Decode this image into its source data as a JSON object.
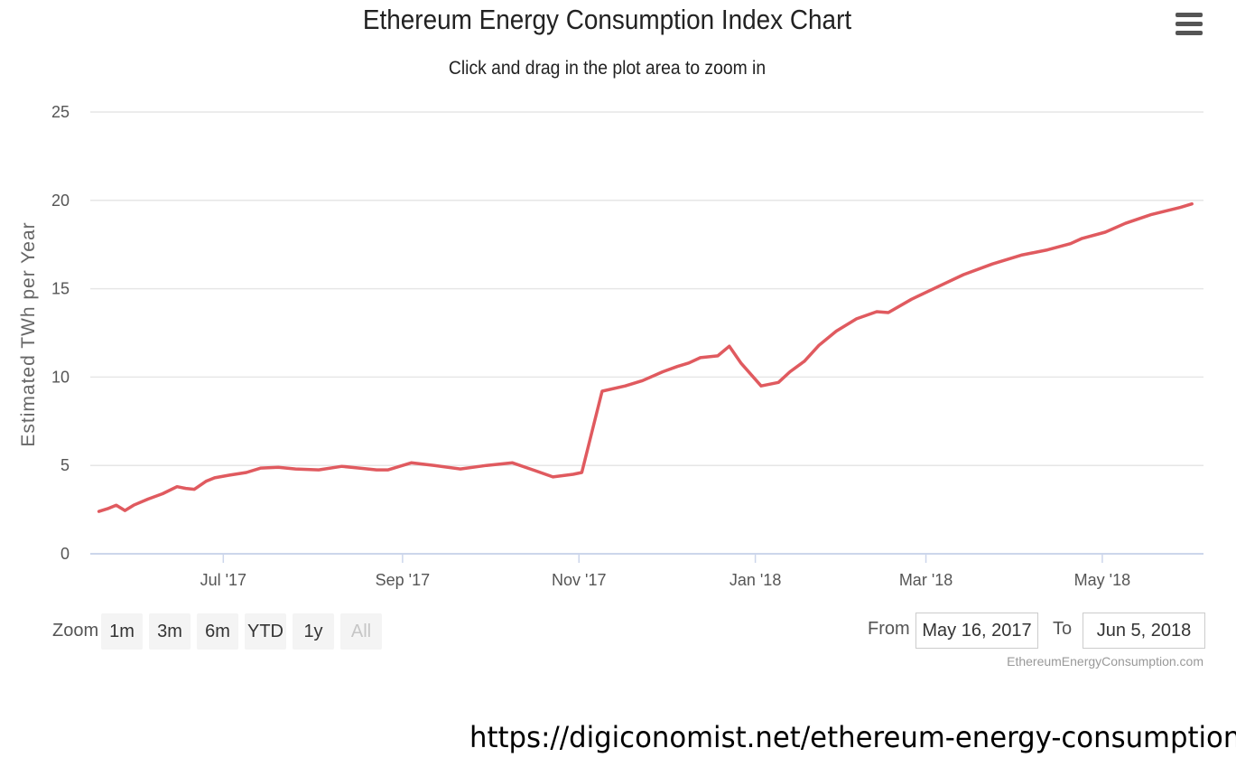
{
  "chart": {
    "title": "Ethereum Energy Consumption Index Chart",
    "subtitle": "Click and drag in the plot area to zoom in",
    "credit": "EthereumEnergyConsumption.com",
    "menu_icon": "hamburger-menu-icon"
  },
  "zoom": {
    "label": "Zoom",
    "buttons": [
      "1m",
      "3m",
      "6m",
      "YTD",
      "1y",
      "All"
    ],
    "active": "All"
  },
  "range": {
    "from_label": "From",
    "from_value": "May 16, 2017",
    "to_label": "To",
    "to_value": "Jun 5, 2018"
  },
  "footer": {
    "url": "https://digiconomist.net/ethereum-energy-consumption"
  },
  "colors": {
    "series": "#e05a5f",
    "grid": "#e6e6e6",
    "axis": "#ccd6eb"
  },
  "chart_data": {
    "type": "line",
    "title": "Ethereum Energy Consumption Index Chart",
    "subtitle": "Click and drag in the plot area to zoom in",
    "xlabel": "",
    "ylabel": "Estimated TWh per Year",
    "ylim": [
      0,
      25
    ],
    "yticks": [
      0,
      5,
      10,
      15,
      20,
      25
    ],
    "xlim": [
      "2017-05-16",
      "2018-06-05"
    ],
    "xticks": [
      {
        "date": "2017-07-01",
        "label": "Jul '17"
      },
      {
        "date": "2017-09-01",
        "label": "Sep '17"
      },
      {
        "date": "2017-11-01",
        "label": "Nov '17"
      },
      {
        "date": "2018-01-01",
        "label": "Jan '18"
      },
      {
        "date": "2018-03-01",
        "label": "Mar '18"
      },
      {
        "date": "2018-05-01",
        "label": "May '18"
      }
    ],
    "grid": true,
    "legend": "none",
    "series": [
      {
        "x": [
          "2017-05-19",
          "2017-05-22",
          "2017-05-25",
          "2017-05-28",
          "2017-05-31",
          "2017-06-05",
          "2017-06-10",
          "2017-06-15",
          "2017-06-18",
          "2017-06-21",
          "2017-06-25",
          "2017-06-28",
          "2017-07-03",
          "2017-07-09",
          "2017-07-14",
          "2017-07-20",
          "2017-07-26",
          "2017-08-03",
          "2017-08-11",
          "2017-08-17",
          "2017-08-23",
          "2017-08-27",
          "2017-09-04",
          "2017-09-12",
          "2017-09-21",
          "2017-09-30",
          "2017-10-09",
          "2017-10-17",
          "2017-10-23",
          "2017-10-30",
          "2017-11-02",
          "2017-11-09",
          "2017-11-17",
          "2017-11-23",
          "2017-11-30",
          "2017-12-05",
          "2017-12-09",
          "2017-12-13",
          "2017-12-16",
          "2017-12-19",
          "2017-12-23",
          "2017-12-27",
          "2018-01-03",
          "2018-01-09",
          "2018-01-13",
          "2018-01-18",
          "2018-01-23",
          "2018-01-29",
          "2018-02-05",
          "2018-02-12",
          "2018-02-16",
          "2018-02-24",
          "2018-03-05",
          "2018-03-14",
          "2018-03-24",
          "2018-04-03",
          "2018-04-12",
          "2018-04-20",
          "2018-04-24",
          "2018-05-02",
          "2018-05-09",
          "2018-05-18",
          "2018-05-28",
          "2018-06-01"
        ],
        "y": [
          2.4,
          2.55,
          2.75,
          2.45,
          2.75,
          3.1,
          3.4,
          3.8,
          3.7,
          3.65,
          4.1,
          4.3,
          4.45,
          4.6,
          4.85,
          4.9,
          4.8,
          4.75,
          4.95,
          4.85,
          4.75,
          4.75,
          5.15,
          5.0,
          4.8,
          5.0,
          5.15,
          4.7,
          4.35,
          4.5,
          4.6,
          9.2,
          9.5,
          9.8,
          10.3,
          10.6,
          10.8,
          11.1,
          11.15,
          11.2,
          11.75,
          10.8,
          9.5,
          9.7,
          10.3,
          10.9,
          11.8,
          12.6,
          13.3,
          13.7,
          13.65,
          14.4,
          15.1,
          15.8,
          16.4,
          16.9,
          17.2,
          17.55,
          17.85,
          18.2,
          18.7,
          19.2,
          19.6,
          19.8
        ]
      }
    ]
  }
}
